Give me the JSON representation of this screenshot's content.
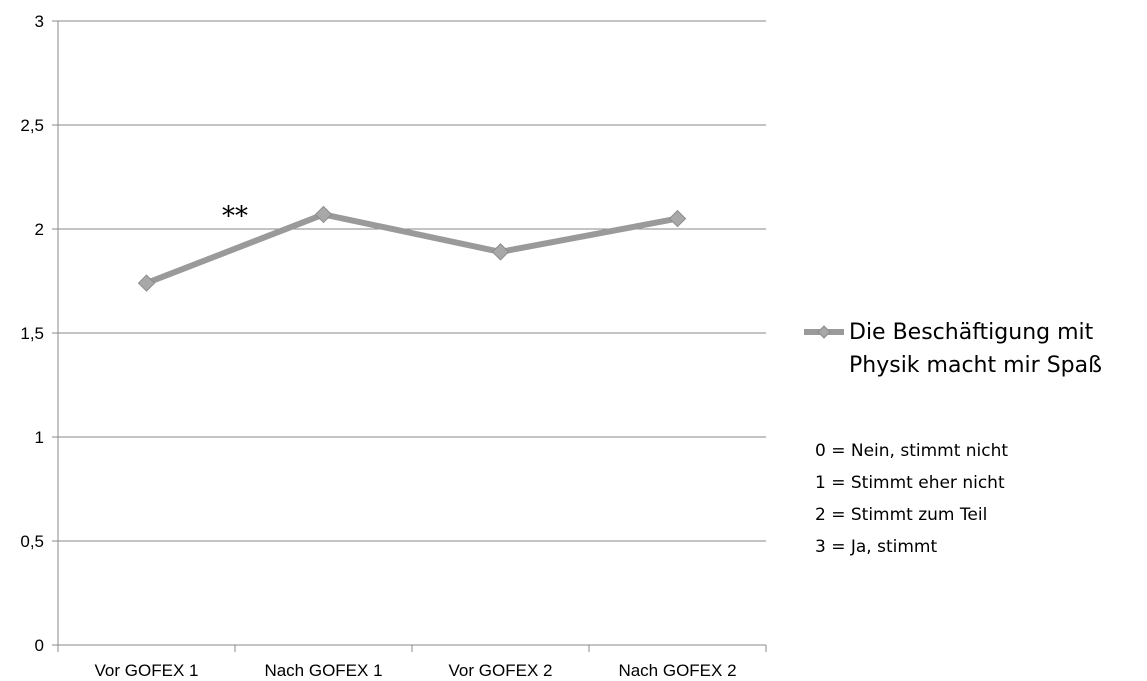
{
  "chart_data": {
    "type": "line",
    "categories": [
      "Vor GOFEX 1",
      "Nach GOFEX 1",
      "Vor GOFEX 2",
      "Nach GOFEX 2"
    ],
    "series": [
      {
        "name": "Die Beschäftigung mit Physik macht mir Spaß",
        "values": [
          1.74,
          2.07,
          1.89,
          2.05
        ],
        "color": "#9a9a9a"
      }
    ],
    "ylim": [
      0,
      3
    ],
    "yticks": [
      "0",
      "0,5",
      "1",
      "1,5",
      "2",
      "2,5",
      "3"
    ],
    "grid": true,
    "legend": {
      "position": "right",
      "lines": [
        "Die Beschäftigung mit",
        "Physik macht mir Spaß"
      ]
    },
    "scale_notes": [
      "0 = Nein, stimmt nicht",
      "1 = Stimmt eher nicht",
      "2 = Stimmt zum Teil",
      "3 = Ja, stimmt"
    ],
    "annotations": [
      {
        "text": "**",
        "between": [
          "Vor GOFEX 1",
          "Nach GOFEX 1"
        ]
      }
    ]
  }
}
